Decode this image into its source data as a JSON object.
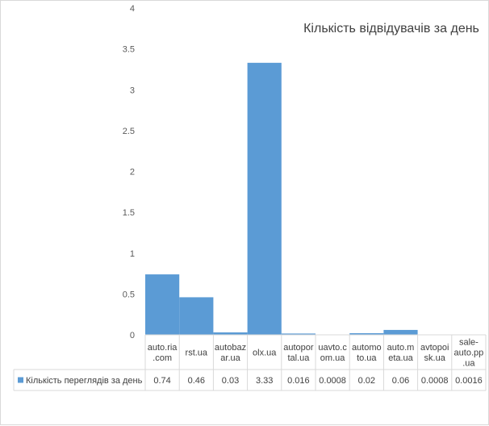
{
  "chart_data": {
    "type": "bar",
    "title": "Кількість відвідувачів за день",
    "categories": [
      [
        "auto.ria",
        ".com"
      ],
      [
        "rst.ua"
      ],
      [
        "autobaz",
        "ar.ua"
      ],
      [
        "olx.ua"
      ],
      [
        "autopor",
        "tal.ua"
      ],
      [
        "uavto.c",
        "om.ua"
      ],
      [
        "automo",
        "to.ua"
      ],
      [
        "auto.m",
        "eta.ua"
      ],
      [
        "avtopoi",
        "sk.ua"
      ],
      [
        "sale-",
        "auto.pp",
        ".ua"
      ]
    ],
    "series": [
      {
        "name": "Кількість переглядів за день",
        "values": [
          0.74,
          0.46,
          0.03,
          3.33,
          0.016,
          0.0008,
          0.02,
          0.06,
          0.0008,
          0.0016
        ],
        "labels": [
          "0.74",
          "0.46",
          "0.03",
          "3.33",
          "0.016",
          "0.0008",
          "0.02",
          "0.06",
          "0.0008",
          "0.0016"
        ],
        "color": "#5b9bd5"
      }
    ],
    "ylim": [
      0,
      4
    ],
    "yticks": [
      "0",
      "0.5",
      "1",
      "1.5",
      "2",
      "2.5",
      "3",
      "3.5",
      "4"
    ],
    "grid": false,
    "data_table": true,
    "legend": "in-data-table"
  }
}
